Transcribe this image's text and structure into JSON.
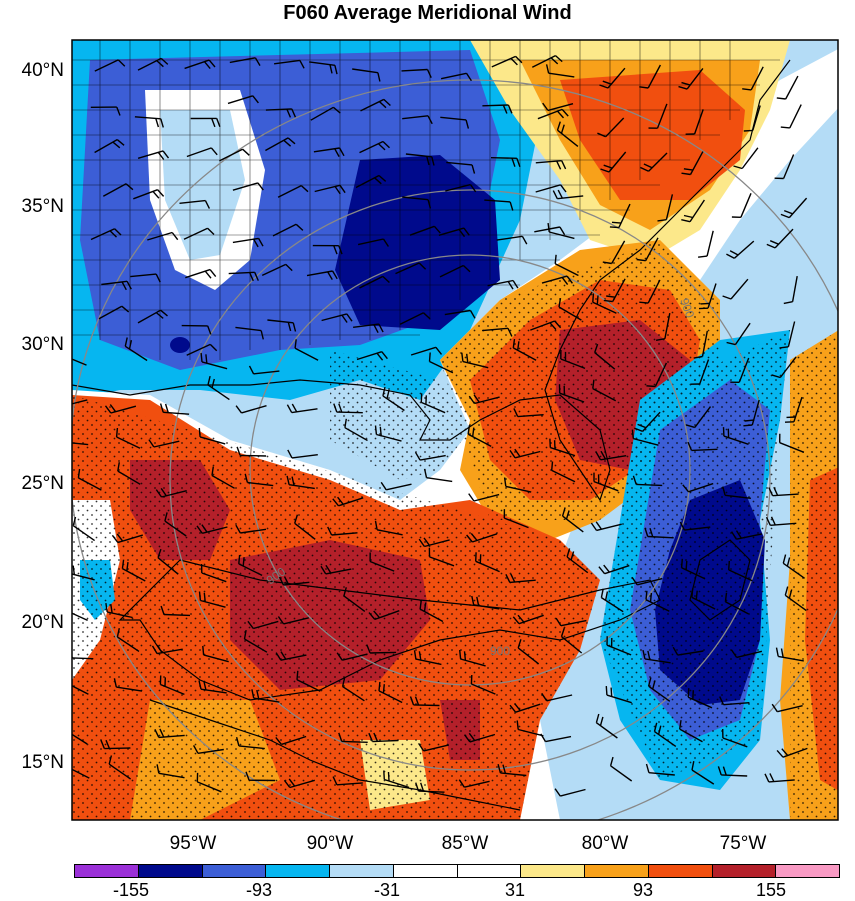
{
  "title": "F060 Average Meridional Wind",
  "lat_labels": [
    "40°N",
    "35°N",
    "30°N",
    "25°N",
    "20°N",
    "15°N"
  ],
  "lon_labels": [
    "95°W",
    "90°W",
    "85°W",
    "80°W",
    "75°W"
  ],
  "contour_label": "900",
  "colorbar": {
    "colors": [
      "#9b30d8",
      "#000a8c",
      "#3c5ed6",
      "#06b6f0",
      "#b4dcf6",
      "#ffffff",
      "#ffffff",
      "#fce88a",
      "#f8a11a",
      "#f14f0f",
      "#b4202a",
      "#f99ac4"
    ],
    "labels": [
      "-155",
      "-93",
      "-31",
      "31",
      "93",
      "155"
    ]
  },
  "colors": {
    "land_outline": "#000000",
    "contour": "#888888",
    "stipple": "#000000"
  }
}
